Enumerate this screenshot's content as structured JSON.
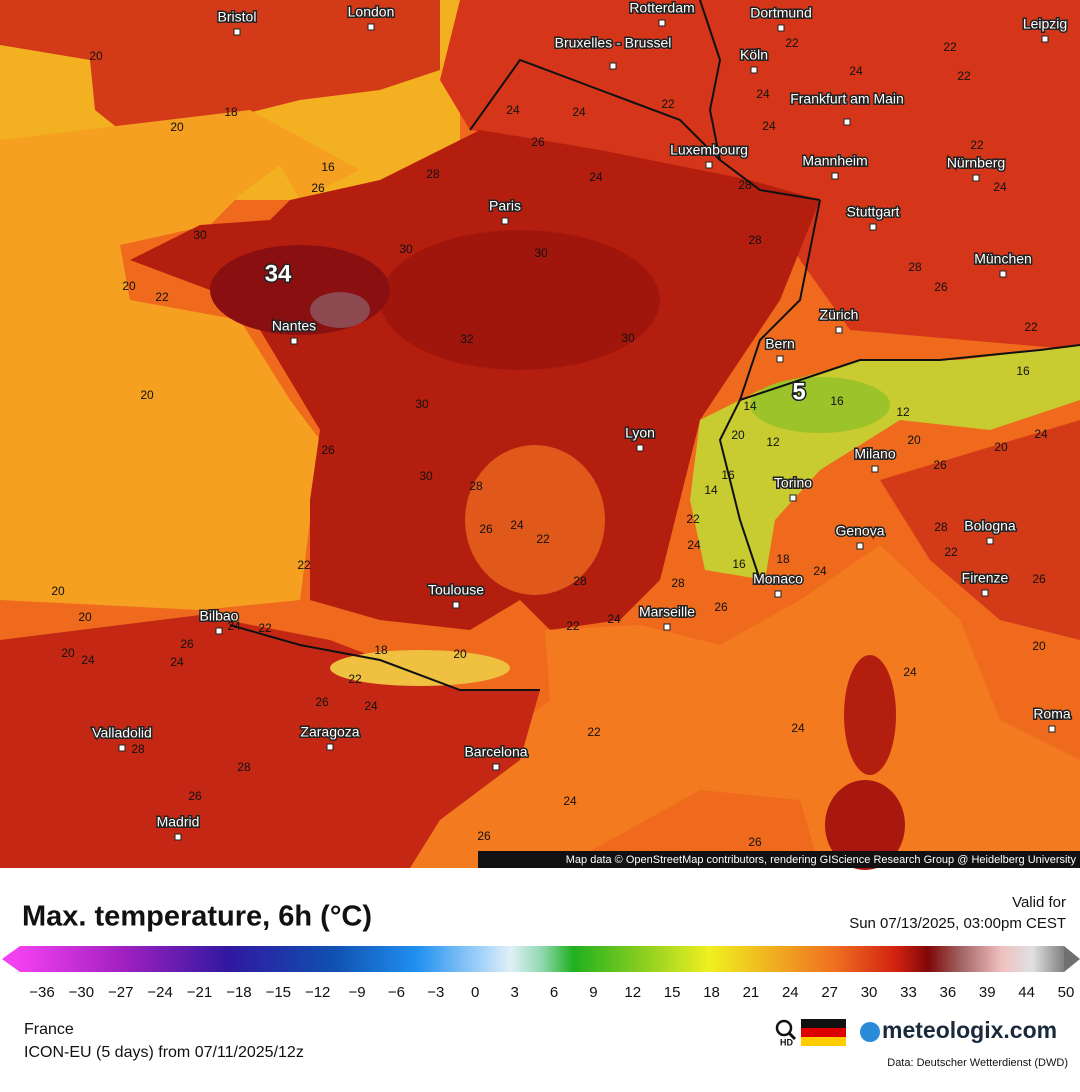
{
  "map": {
    "cities": [
      "Bristol",
      "London",
      "Rotterdam",
      "Dortmund",
      "Leipzig",
      "Bruxelles - Brussel",
      "Köln",
      "Frankfurt am Main",
      "Luxembourg",
      "Mannheim",
      "Nürnberg",
      "Paris",
      "Stuttgart",
      "München",
      "Nantes",
      "Zürich",
      "Bern",
      "Lyon",
      "Milano",
      "Torino",
      "Bologna",
      "Genova",
      "Firenze",
      "Toulouse",
      "Monaco",
      "Marseille",
      "Bilbao",
      "Valladolid",
      "Zaragoza",
      "Barcelona",
      "Roma",
      "Madrid"
    ],
    "highlights": [
      "34",
      "5"
    ],
    "temperature_labels": [
      20,
      18,
      20,
      16,
      26,
      28,
      30,
      22,
      20,
      32,
      30,
      30,
      30,
      20,
      30,
      26,
      30,
      28,
      24,
      22,
      26,
      28,
      22,
      24,
      24,
      28,
      26,
      28,
      28,
      26,
      24,
      22,
      24,
      24,
      26,
      26,
      18,
      20,
      22,
      26,
      24,
      28,
      26,
      28,
      24,
      20,
      20,
      22,
      20,
      24,
      26,
      22,
      24,
      22,
      22,
      24,
      26,
      20,
      24,
      16,
      12,
      20,
      16,
      20,
      22,
      24,
      22,
      14,
      20,
      12,
      16,
      14,
      22,
      16,
      18,
      24,
      26,
      28,
      22,
      24,
      22,
      24,
      28,
      24,
      24,
      22,
      26,
      24
    ],
    "credit": "Map data © OpenStreetMap contributors, rendering GIScience Research Group @ Heidelberg University"
  },
  "legend": {
    "title": "Max. temperature, 6h (°C)",
    "valid_label": "Valid for",
    "valid_time": "Sun 07/13/2025, 03:00pm CEST",
    "ticks": [
      "−36",
      "−30",
      "−27",
      "−24",
      "−21",
      "−18",
      "−15",
      "−12",
      "−9",
      "−6",
      "−3",
      "0",
      "3",
      "6",
      "9",
      "12",
      "15",
      "18",
      "21",
      "24",
      "27",
      "30",
      "33",
      "36",
      "39",
      "44",
      "50"
    ]
  },
  "footer": {
    "region": "France",
    "model": "ICON-EU (5 days) from 07/11/2025/12z",
    "hd": "HD",
    "brand": "meteologix.com",
    "source": "Data: Deutscher Wetterdienst (DWD)"
  }
}
